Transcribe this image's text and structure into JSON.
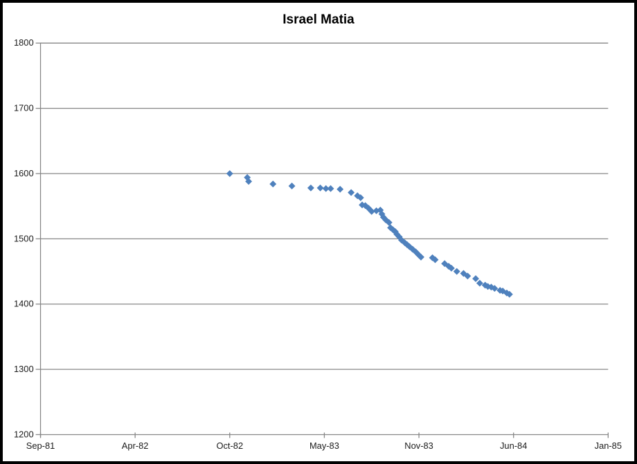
{
  "colors": {
    "marker": "#4F81BD",
    "grid": "#878787",
    "axis": "#878787",
    "text": "#1a1a1a",
    "frame": "#000000",
    "background": "#FFFFFF"
  },
  "chart_data": {
    "type": "scatter",
    "title": "Israel Matia",
    "xlabel": "",
    "ylabel": "",
    "legend": "none",
    "grid": true,
    "marker_shape": "diamond",
    "x_axis": {
      "unit": "months-since-Sep-81",
      "range_t": [
        0,
        40
      ],
      "ticks": [
        {
          "label": "Sep-81",
          "t": 0
        },
        {
          "label": "Apr-82",
          "t": 7
        },
        {
          "label": "Oct-82",
          "t": 13
        },
        {
          "label": "May-83",
          "t": 20
        },
        {
          "label": "Nov-83",
          "t": 26
        },
        {
          "label": "Jun-84",
          "t": 33
        },
        {
          "label": "Jan-85",
          "t": 40
        }
      ]
    },
    "y_axis": {
      "range": [
        1200,
        1800
      ],
      "ticks": [
        1800,
        1700,
        1600,
        1500,
        1400,
        1300,
        1200
      ]
    },
    "series": [
      {
        "name": "Israel Matia",
        "points": [
          [
            13.0,
            1600
          ],
          [
            14.3,
            1594
          ],
          [
            14.4,
            1588
          ],
          [
            16.2,
            1584
          ],
          [
            17.6,
            1581
          ],
          [
            19.0,
            1578
          ],
          [
            19.7,
            1578
          ],
          [
            20.1,
            1577
          ],
          [
            20.4,
            1577
          ],
          [
            21.0,
            1576
          ],
          [
            21.7,
            1571
          ],
          [
            22.1,
            1566
          ],
          [
            22.3,
            1563
          ],
          [
            22.4,
            1552
          ],
          [
            22.6,
            1551
          ],
          [
            22.8,
            1547
          ],
          [
            23.0,
            1542
          ],
          [
            23.3,
            1543
          ],
          [
            23.55,
            1544
          ],
          [
            23.65,
            1538
          ],
          [
            23.75,
            1533
          ],
          [
            23.9,
            1529
          ],
          [
            24.1,
            1525
          ],
          [
            24.2,
            1517
          ],
          [
            24.35,
            1514
          ],
          [
            24.5,
            1511
          ],
          [
            24.6,
            1507
          ],
          [
            24.75,
            1503
          ],
          [
            24.9,
            1498
          ],
          [
            25.1,
            1494
          ],
          [
            25.25,
            1491
          ],
          [
            25.4,
            1488
          ],
          [
            25.6,
            1484
          ],
          [
            25.8,
            1480
          ],
          [
            26.0,
            1475
          ],
          [
            26.15,
            1472
          ],
          [
            27.0,
            1471
          ],
          [
            27.2,
            1468
          ],
          [
            27.9,
            1462
          ],
          [
            28.2,
            1458
          ],
          [
            28.4,
            1455
          ],
          [
            28.8,
            1450
          ],
          [
            29.3,
            1447
          ],
          [
            29.6,
            1443
          ],
          [
            30.2,
            1439
          ],
          [
            30.5,
            1432
          ],
          [
            30.9,
            1429
          ],
          [
            31.1,
            1427
          ],
          [
            31.35,
            1426
          ],
          [
            31.6,
            1424
          ],
          [
            32.0,
            1421
          ],
          [
            32.2,
            1420
          ],
          [
            32.5,
            1417
          ],
          [
            32.7,
            1415
          ]
        ]
      }
    ]
  }
}
